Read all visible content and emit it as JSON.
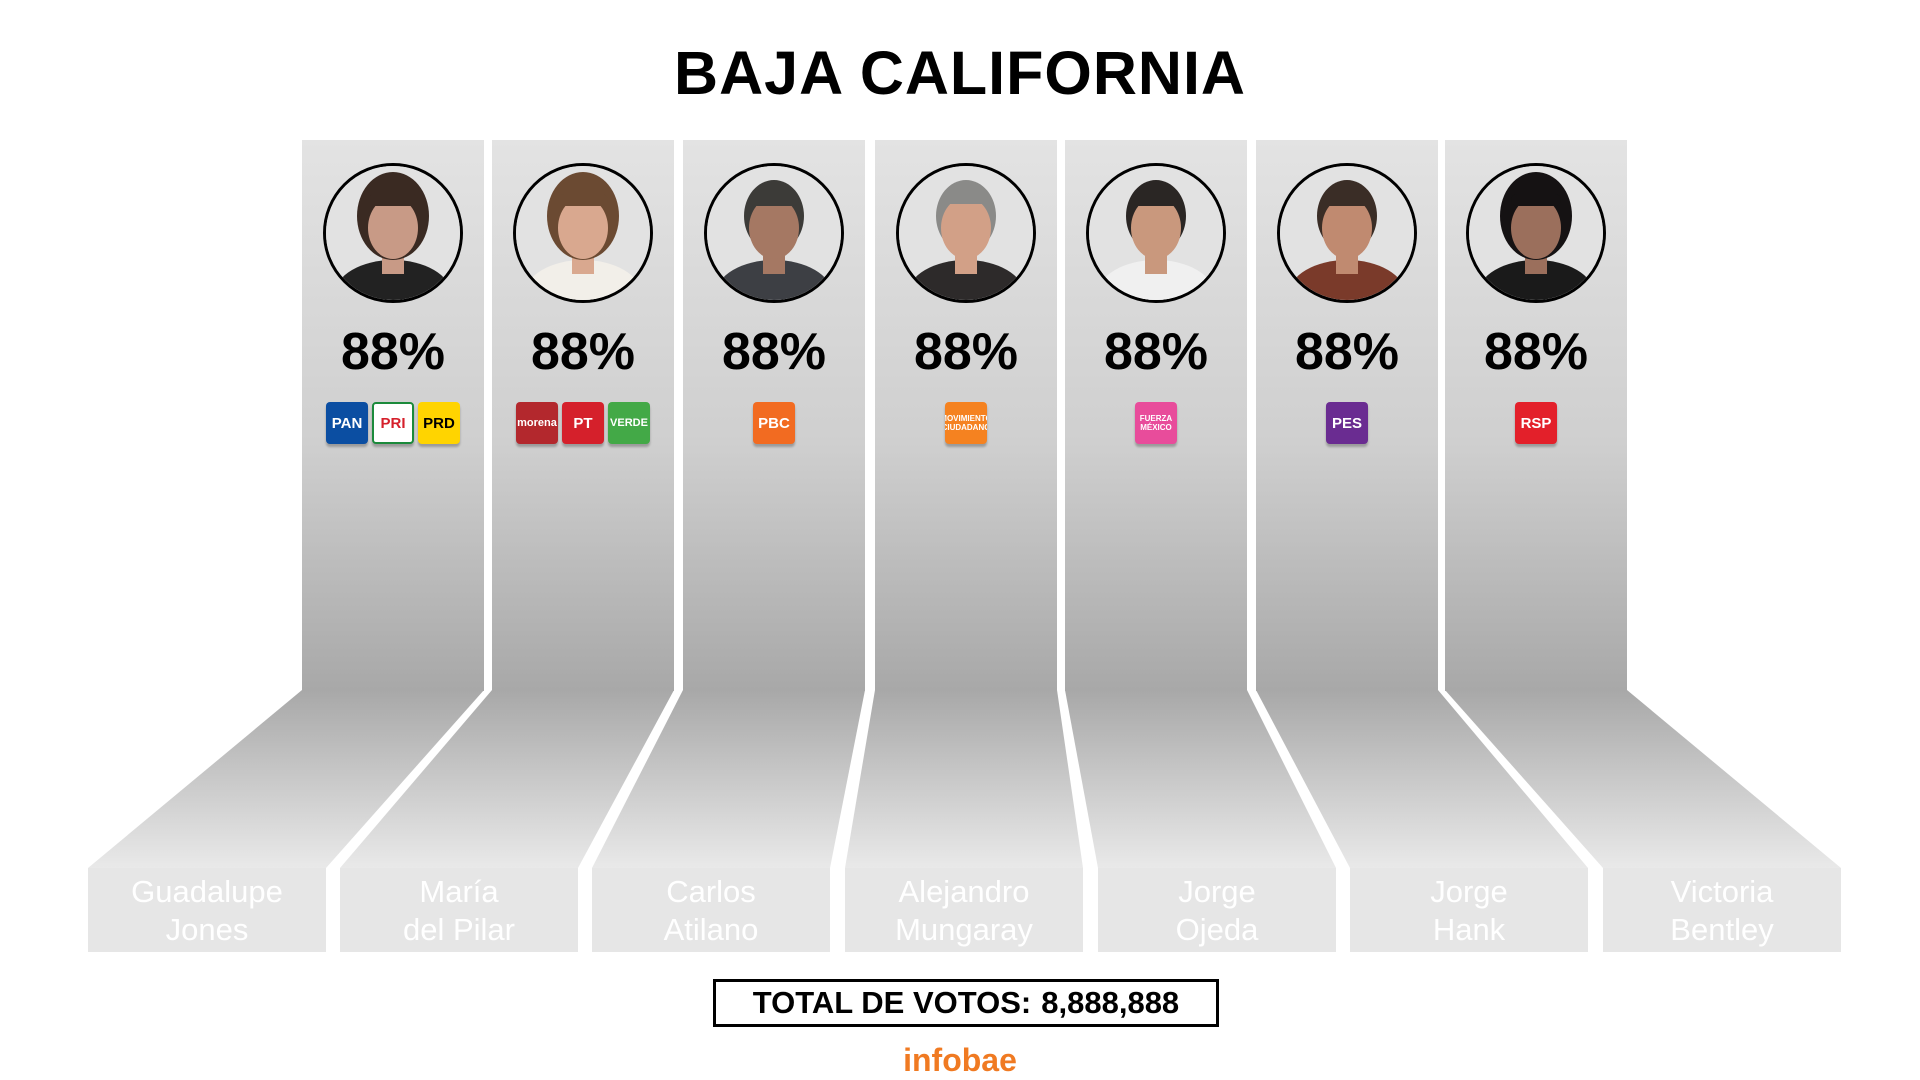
{
  "title": "BAJA CALIFORNIA",
  "candidates": [
    {
      "name_line1": "Guadalupe",
      "name_line2": "Jones",
      "percent": "88%",
      "percent_value": 88,
      "parties": [
        {
          "label": "PAN",
          "color": "#0b4ea2"
        },
        {
          "label": "PRI",
          "color": "#ffffff"
        },
        {
          "label": "PRD",
          "color": "#ffd400"
        }
      ]
    },
    {
      "name_line1": "María",
      "name_line2": "del Pilar",
      "percent": "88%",
      "percent_value": 88,
      "parties": [
        {
          "label": "morena",
          "color": "#b3282d"
        },
        {
          "label": "PT",
          "color": "#d5202b"
        },
        {
          "label": "VERDE",
          "color": "#43a947"
        }
      ]
    },
    {
      "name_line1": "Carlos",
      "name_line2": "Atilano",
      "percent": "88%",
      "percent_value": 88,
      "parties": [
        {
          "label": "PBC",
          "color": "#f26b21"
        }
      ]
    },
    {
      "name_line1": "Alejandro",
      "name_line2": "Mungaray",
      "percent": "88%",
      "percent_value": 88,
      "parties": [
        {
          "label": "MOVIMIENTO CIUDADANO",
          "color": "#f58220"
        }
      ]
    },
    {
      "name_line1": "Jorge",
      "name_line2": "Ojeda",
      "percent": "88%",
      "percent_value": 88,
      "parties": [
        {
          "label": "FUERZA MÉXICO",
          "color": "#e84c9b"
        }
      ]
    },
    {
      "name_line1": "Jorge",
      "name_line2": "Hank",
      "percent": "88%",
      "percent_value": 88,
      "parties": [
        {
          "label": "PES",
          "color": "#6a2c91"
        }
      ]
    },
    {
      "name_line1": "Victoria",
      "name_line2": "Bentley",
      "percent": "88%",
      "percent_value": 88,
      "parties": [
        {
          "label": "RSP",
          "color": "#e3202a"
        }
      ]
    }
  ],
  "total_label": "TOTAL DE VOTOS:",
  "total_value": "8,888,888",
  "brand": "infobae",
  "colors": {
    "brand": "#f07a22",
    "column": "#d9d9d9"
  }
}
